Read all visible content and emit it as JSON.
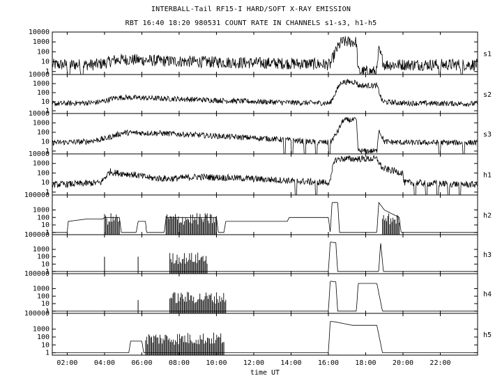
{
  "chart_data": {
    "type": "line",
    "title": "INTERBALL-Tail RF15-I HARD/SOFT X-RAY EMISSION",
    "subtitle": "RBT 16:40 18:20 980531  COUNT RATE IN CHANNELS s1-s3, h1-h5",
    "xlabel": "time UT",
    "x_tick_labels": [
      "02:00",
      "04:00",
      "06:00",
      "08:00",
      "10:00",
      "12:00",
      "14:00",
      "16:00",
      "18:00",
      "20:00",
      "22:00"
    ],
    "x_ticks_hours": [
      2,
      4,
      6,
      8,
      10,
      12,
      14,
      16,
      18,
      20,
      22
    ],
    "xlim_hours": [
      1.2,
      24.0
    ],
    "y_scale": "log",
    "line_color": "#000000",
    "background": "#ffffff",
    "panels": [
      {
        "name": "s1",
        "y_tick_labels": [
          "10000",
          "1000",
          "100",
          "10",
          "1"
        ],
        "y_ticks": [
          10000,
          1000,
          100,
          10,
          1
        ],
        "ylim": [
          0.5,
          10000
        ],
        "points": [
          [
            1.2,
            5
          ],
          [
            3.5,
            5
          ],
          [
            4.0,
            7
          ],
          [
            4.5,
            14
          ],
          [
            5.0,
            17
          ],
          [
            7.0,
            12
          ],
          [
            10.0,
            9
          ],
          [
            13.0,
            7
          ],
          [
            15.0,
            6
          ],
          [
            16.1,
            5
          ],
          [
            16.4,
            120
          ],
          [
            16.7,
            1000
          ],
          [
            17.5,
            1000
          ],
          [
            17.6,
            1
          ],
          [
            18.6,
            1
          ],
          [
            18.7,
            150
          ],
          [
            19.0,
            5
          ],
          [
            20.0,
            5
          ],
          [
            21.8,
            5
          ],
          [
            23.9,
            5
          ]
        ],
        "noise": 1.2,
        "dropouts": [
          [
            2.0,
            2.15
          ],
          [
            2.7,
            2.85
          ],
          [
            21.9,
            22.0
          ],
          [
            23.1,
            23.2
          ]
        ]
      },
      {
        "name": "s2",
        "y_tick_labels": [
          "10000",
          "1000",
          "100",
          "10",
          "1"
        ],
        "y_ticks": [
          10000,
          1000,
          100,
          10,
          1
        ],
        "ylim": [
          0.5,
          10000
        ],
        "points": [
          [
            1.2,
            6
          ],
          [
            3.5,
            8
          ],
          [
            4.0,
            12
          ],
          [
            4.5,
            25
          ],
          [
            5.0,
            30
          ],
          [
            8.0,
            20
          ],
          [
            11.0,
            12
          ],
          [
            14.0,
            8
          ],
          [
            16.1,
            7
          ],
          [
            16.5,
            300
          ],
          [
            16.7,
            1500
          ],
          [
            17.5,
            1500
          ],
          [
            17.6,
            600
          ],
          [
            18.6,
            600
          ],
          [
            18.9,
            10
          ],
          [
            20.0,
            7
          ],
          [
            23.9,
            6
          ]
        ],
        "noise": 0.6,
        "dropouts": []
      },
      {
        "name": "s3",
        "y_tick_labels": [
          "10000",
          "1000",
          "100",
          "10",
          "1"
        ],
        "y_ticks": [
          10000,
          1000,
          100,
          10,
          1
        ],
        "ylim": [
          0.5,
          10000
        ],
        "points": [
          [
            1.2,
            8
          ],
          [
            3.0,
            10
          ],
          [
            4.0,
            20
          ],
          [
            5.0,
            90
          ],
          [
            7.0,
            80
          ],
          [
            10.0,
            40
          ],
          [
            13.0,
            20
          ],
          [
            15.0,
            10
          ],
          [
            16.1,
            8
          ],
          [
            16.5,
            120
          ],
          [
            16.8,
            2000
          ],
          [
            17.5,
            2000
          ],
          [
            17.6,
            1
          ],
          [
            18.6,
            1
          ],
          [
            18.7,
            200
          ],
          [
            19.0,
            10
          ],
          [
            20.0,
            8
          ],
          [
            23.9,
            8
          ]
        ],
        "noise": 0.6,
        "dropouts": [
          [
            13.6,
            13.7
          ],
          [
            14.0,
            14.1
          ],
          [
            14.7,
            14.8
          ],
          [
            15.3,
            15.4
          ],
          [
            16.0,
            16.1
          ],
          [
            21.9,
            22.0
          ],
          [
            23.2,
            23.3
          ]
        ]
      },
      {
        "name": "h1",
        "y_tick_labels": [
          "10000",
          "1000",
          "100",
          "10",
          "1"
        ],
        "y_ticks": [
          10000,
          1000,
          100,
          10,
          1
        ],
        "ylim": [
          0.5,
          10000
        ],
        "points": [
          [
            1.2,
            6
          ],
          [
            3.0,
            8
          ],
          [
            3.8,
            10
          ],
          [
            4.3,
            150
          ],
          [
            4.5,
            110
          ],
          [
            5.5,
            70
          ],
          [
            6.5,
            30
          ],
          [
            7.5,
            25
          ],
          [
            9.0,
            40
          ],
          [
            11.0,
            30
          ],
          [
            13.0,
            20
          ],
          [
            15.0,
            12
          ],
          [
            16.1,
            10
          ],
          [
            16.3,
            2000
          ],
          [
            16.6,
            3000
          ],
          [
            18.6,
            3000
          ],
          [
            18.9,
            300
          ],
          [
            20.0,
            100
          ],
          [
            20.05,
            10
          ],
          [
            23.9,
            6
          ]
        ],
        "noise": 0.7,
        "dropouts": [
          [
            14.2,
            14.3
          ],
          [
            15.3,
            15.4
          ],
          [
            20.6,
            20.7
          ],
          [
            21.2,
            21.3
          ],
          [
            21.8,
            21.9
          ],
          [
            22.4,
            22.5
          ],
          [
            23.0,
            23.1
          ]
        ]
      },
      {
        "name": "h2",
        "y_tick_labels": [
          "100000",
          "1000",
          "100",
          "10",
          "1"
        ],
        "y_ticks": [
          100000,
          1000,
          100,
          10,
          1
        ],
        "ylim": [
          0.5,
          100000
        ],
        "points": [
          [
            1.2,
            1
          ],
          [
            2.0,
            1
          ],
          [
            2.05,
            30
          ],
          [
            3.0,
            60
          ],
          [
            3.9,
            60
          ],
          [
            4.0,
            100
          ],
          [
            4.8,
            100
          ],
          [
            4.9,
            1
          ],
          [
            5.7,
            1
          ],
          [
            5.8,
            30
          ],
          [
            6.2,
            30
          ],
          [
            6.25,
            1
          ],
          [
            7.2,
            1
          ],
          [
            7.3,
            100
          ],
          [
            10.0,
            100
          ],
          [
            10.1,
            1
          ],
          [
            10.4,
            1
          ],
          [
            10.5,
            30
          ],
          [
            12.0,
            30
          ],
          [
            13.8,
            30
          ],
          [
            13.9,
            100
          ],
          [
            16.0,
            100
          ],
          [
            16.1,
            1
          ],
          [
            16.2,
            10000
          ],
          [
            16.5,
            10000
          ],
          [
            16.6,
            1
          ],
          [
            18.6,
            1
          ],
          [
            18.7,
            10000
          ],
          [
            19.0,
            1000
          ],
          [
            19.8,
            100
          ],
          [
            19.9,
            1
          ],
          [
            23.9,
            1
          ]
        ],
        "noise": 0,
        "dropouts": [],
        "burst_ranges": [
          [
            4.0,
            4.8
          ],
          [
            7.3,
            10.0
          ],
          [
            18.9,
            19.8
          ]
        ]
      },
      {
        "name": "h3",
        "y_tick_labels": [
          "100000",
          "1000",
          "100",
          "10",
          "1"
        ],
        "y_ticks": [
          100000,
          1000,
          100,
          10,
          1
        ],
        "ylim": [
          0.5,
          100000
        ],
        "points": [
          [
            1.2,
            1
          ],
          [
            16.0,
            1
          ],
          [
            16.1,
            10000
          ],
          [
            16.4,
            8000
          ],
          [
            16.5,
            1
          ],
          [
            18.7,
            1
          ],
          [
            18.8,
            10000
          ],
          [
            18.95,
            1
          ],
          [
            23.9,
            1
          ]
        ],
        "noise": 0,
        "dropouts": [],
        "spikes": [
          [
            4.0,
            100
          ],
          [
            5.8,
            100
          ]
        ],
        "burst_ranges": [
          [
            7.5,
            9.5
          ]
        ]
      },
      {
        "name": "h4",
        "y_tick_labels": [
          "100000",
          "1000",
          "100",
          "10",
          "1"
        ],
        "y_ticks": [
          100000,
          1000,
          100,
          10,
          1
        ],
        "ylim": [
          0.5,
          100000
        ],
        "points": [
          [
            1.2,
            1
          ],
          [
            16.0,
            1
          ],
          [
            16.1,
            10000
          ],
          [
            16.4,
            8000
          ],
          [
            16.5,
            1
          ],
          [
            17.5,
            1
          ],
          [
            17.6,
            5000
          ],
          [
            18.6,
            5000
          ],
          [
            18.9,
            1
          ],
          [
            23.9,
            1
          ]
        ],
        "noise": 0,
        "dropouts": [],
        "spikes": [
          [
            5.8,
            30
          ]
        ],
        "burst_ranges": [
          [
            7.5,
            10.5
          ]
        ]
      },
      {
        "name": "h5",
        "y_tick_labels": [
          "100000",
          "1000",
          "100",
          "10",
          "1"
        ],
        "y_ticks": [
          100000,
          1000,
          100,
          10,
          1
        ],
        "ylim": [
          0.5,
          100000
        ],
        "points": [
          [
            1.2,
            1
          ],
          [
            5.3,
            1
          ],
          [
            5.4,
            30
          ],
          [
            6.0,
            30
          ],
          [
            6.1,
            1
          ],
          [
            16.0,
            1
          ],
          [
            16.1,
            10000
          ],
          [
            16.4,
            8000
          ],
          [
            17.3,
            3000
          ],
          [
            18.6,
            3000
          ],
          [
            18.9,
            1
          ],
          [
            23.9,
            1
          ]
        ],
        "noise": 0,
        "dropouts": [],
        "burst_ranges": [
          [
            6.2,
            10.4
          ]
        ]
      }
    ]
  }
}
